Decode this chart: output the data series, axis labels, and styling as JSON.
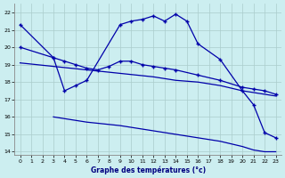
{
  "title": "Graphe des températures (°c)",
  "background_color": "#cceef0",
  "line_color": "#0000aa",
  "grid_color": "#aacccc",
  "xlim": [
    -0.5,
    23.5
  ],
  "ylim": [
    13.8,
    22.5
  ],
  "yticks": [
    14,
    15,
    16,
    17,
    18,
    19,
    20,
    21,
    22
  ],
  "xticks": [
    0,
    1,
    2,
    3,
    4,
    5,
    6,
    7,
    8,
    9,
    10,
    11,
    12,
    13,
    14,
    15,
    16,
    17,
    18,
    19,
    20,
    21,
    22,
    23
  ],
  "line1_x": [
    0,
    3,
    4,
    5,
    6,
    9,
    10,
    11,
    12,
    13,
    14,
    15,
    16,
    18,
    20,
    21,
    22,
    23
  ],
  "line1_y": [
    21.3,
    19.4,
    17.5,
    17.8,
    18.1,
    21.3,
    21.5,
    21.6,
    21.8,
    21.5,
    21.9,
    21.5,
    20.2,
    19.3,
    17.5,
    16.7,
    15.1,
    14.8
  ],
  "line2_x": [
    0,
    3,
    4,
    5,
    6,
    7,
    8,
    9,
    10,
    11,
    12,
    13,
    14,
    16,
    18,
    20,
    21,
    22,
    23
  ],
  "line2_y": [
    20.0,
    19.4,
    19.2,
    19.0,
    18.8,
    18.7,
    18.9,
    19.2,
    19.2,
    19.0,
    18.9,
    18.8,
    18.7,
    18.4,
    18.1,
    17.7,
    17.6,
    17.5,
    17.3
  ],
  "line3_x": [
    0,
    3,
    6,
    9,
    12,
    14,
    16,
    18,
    20,
    22,
    23
  ],
  "line3_y": [
    19.1,
    18.9,
    18.7,
    18.5,
    18.3,
    18.1,
    18.0,
    17.8,
    17.5,
    17.3,
    17.2
  ],
  "line4_x": [
    3,
    6,
    9,
    12,
    14,
    16,
    18,
    20,
    21,
    22,
    23
  ],
  "line4_y": [
    16.0,
    15.7,
    15.5,
    15.2,
    15.0,
    14.8,
    14.6,
    14.3,
    14.1,
    14.0,
    14.0
  ]
}
